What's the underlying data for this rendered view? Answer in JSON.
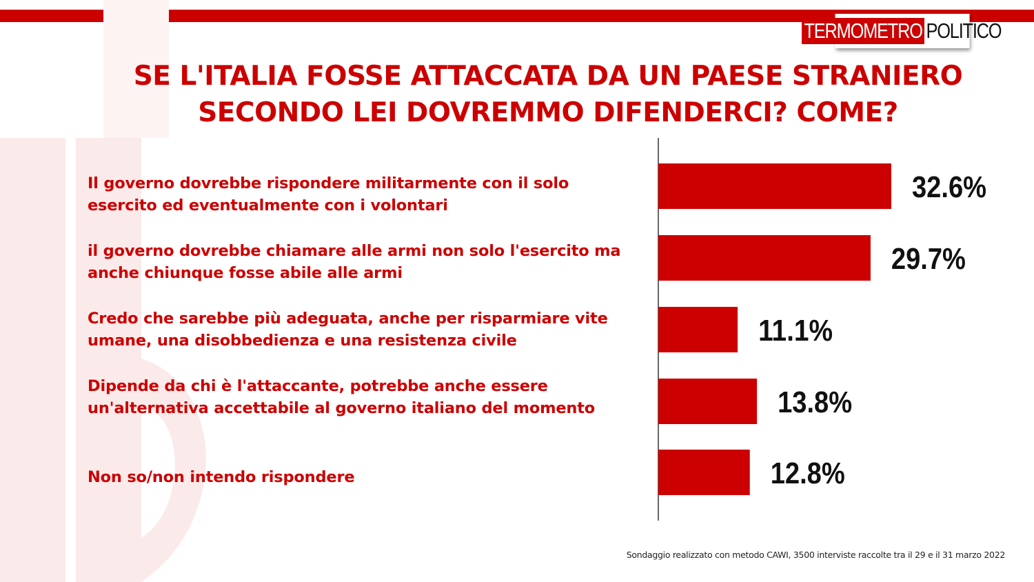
{
  "header": {
    "logo_part1": "TERMOMETRO",
    "logo_part2": "POLITICO"
  },
  "colors": {
    "accent": "#cc0000",
    "bar": "#cc0000",
    "value_text": "#111111"
  },
  "chart_data": {
    "type": "bar",
    "orientation": "horizontal",
    "title": "SE L'ITALIA FOSSE ATTACCATA DA UN PAESE STRANIERO SECONDO LEI DOVREMMO DIFENDERCI? COME?",
    "title_lines": [
      "SE L'ITALIA FOSSE ATTACCATA DA UN PAESE STRANIERO",
      "SECONDO LEI DOVREMMO DIFENDERCI? COME?"
    ],
    "categories": [
      "Il governo dovrebbe rispondere militarmente con il solo esercito ed eventualmente con i volontari",
      "il governo dovrebbe chiamare alle armi non solo l'esercito ma anche chiunque fosse abile alle armi",
      "Credo che sarebbe più adeguata, anche per risparmiare vite umane, una disobbedienza e una resistenza civile",
      "Dipende da chi è l'attaccante, potrebbe anche essere un'alternativa accettabile al governo italiano del momento",
      "Non so/non intendo rispondere"
    ],
    "values": [
      32.6,
      29.7,
      11.1,
      13.8,
      12.8
    ],
    "value_labels": [
      "32.6%",
      "29.7%",
      "11.1%",
      "13.8%",
      "12.8%"
    ],
    "unit": "%",
    "xlim": [
      0,
      40
    ],
    "grid": false,
    "legend": "none"
  },
  "footnote": "Sondaggio realizzato con metodo CAWI, 3500 interviste raccolte tra il 29 e il 31 marzo 2022"
}
